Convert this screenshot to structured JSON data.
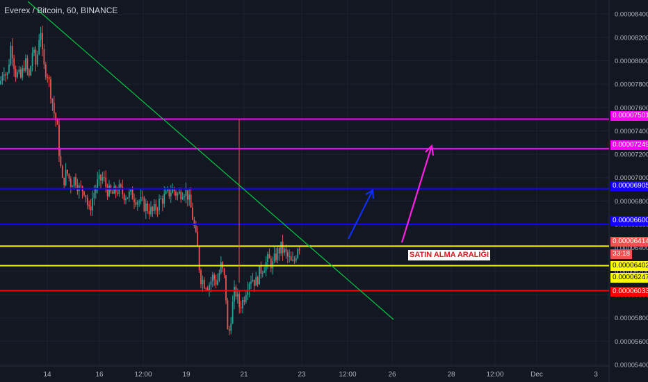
{
  "header": {
    "ticker_label": "Everex / Bitcoin, 60, BINANCE"
  },
  "annotation": {
    "text": "SATIN ALMA ARALIĞI"
  },
  "countdown": "33:18",
  "colors": {
    "background": "#131722",
    "grid": "#1e2230",
    "up": "#26a69a",
    "down": "#ef5350",
    "magenta": "#ff00ff",
    "blue": "#1400ff",
    "yellow": "#ffff00",
    "red": "#ff0000",
    "trend": "#00cc44",
    "arrow_blue": "#0f2fff",
    "arrow_magenta": "#ff1ee6"
  },
  "chart_data": {
    "type": "candlestick",
    "title": "Everex / Bitcoin, 60, BINANCE",
    "ylim": [
      5.37e-05,
      8.52e-05
    ],
    "y_ticks": [
      "0.00008400",
      "0.00008200",
      "0.00008000",
      "0.00007800",
      "0.00007600",
      "0.00007400",
      "0.00007200",
      "0.00007000",
      "0.00006800",
      "0.00006600",
      "0.00006400",
      "0.00006200",
      "0.00006000",
      "0.00005800",
      "0.00005600",
      "0.00005400"
    ],
    "x_ticks": [
      "14",
      "16",
      "12:00",
      "19",
      "21",
      "23",
      "12:00",
      "26",
      "28",
      "12:00",
      "Dec",
      "3"
    ],
    "grid": true,
    "horizontal_levels": [
      {
        "value": 7.501e-05,
        "label": "0.00007501",
        "color": "magenta"
      },
      {
        "value": 7.249e-05,
        "label": "0.00007249",
        "color": "magenta"
      },
      {
        "value": 6.905e-05,
        "label": "0.00006905",
        "color": "blue"
      },
      {
        "value": 6.6e-05,
        "label": "0.00006600",
        "color": "blue"
      },
      {
        "value": 6.414e-05,
        "label": "0.00006414",
        "color": "yellow"
      },
      {
        "value": 6.247e-05,
        "label": "0.00006247",
        "color": "yellow"
      },
      {
        "value": 6.033e-05,
        "label": "0.00006033",
        "color": "red"
      }
    ],
    "last_price": {
      "value": 6.414e-05,
      "label": "0.00006414"
    },
    "extra_price_label": "0.00006402",
    "price_path": [
      {
        "t": 0,
        "p": 7.8e-05
      },
      {
        "t": 5,
        "p": 7.95e-05
      },
      {
        "t": 10,
        "p": 7.85e-05
      },
      {
        "t": 16,
        "p": 8.15e-05
      },
      {
        "t": 22,
        "p": 7.9e-05
      },
      {
        "t": 30,
        "p": 7.85e-05
      },
      {
        "t": 36,
        "p": 8e-05
      },
      {
        "t": 42,
        "p": 7.85e-05
      },
      {
        "t": 47,
        "p": 8.1e-05
      },
      {
        "t": 52,
        "p": 7.95e-05
      },
      {
        "t": 58,
        "p": 8.32e-05
      },
      {
        "t": 62,
        "p": 7.95e-05
      },
      {
        "t": 68,
        "p": 7.9e-05
      },
      {
        "t": 74,
        "p": 7.7e-05
      },
      {
        "t": 78,
        "p": 7.55e-05
      },
      {
        "t": 82,
        "p": 7.45e-05
      },
      {
        "t": 86,
        "p": 7.15e-05
      },
      {
        "t": 90,
        "p": 6.95e-05
      },
      {
        "t": 96,
        "p": 7.05e-05
      },
      {
        "t": 102,
        "p": 6.95e-05
      },
      {
        "t": 108,
        "p": 7e-05
      },
      {
        "t": 114,
        "p": 6.9e-05
      },
      {
        "t": 122,
        "p": 6.9e-05
      },
      {
        "t": 128,
        "p": 6.7e-05
      },
      {
        "t": 134,
        "p": 6.85e-05
      },
      {
        "t": 140,
        "p": 6.95e-05
      },
      {
        "t": 148,
        "p": 7e-05
      },
      {
        "t": 154,
        "p": 6.9e-05
      },
      {
        "t": 160,
        "p": 6.85e-05
      },
      {
        "t": 170,
        "p": 6.9e-05
      },
      {
        "t": 180,
        "p": 6.85e-05
      },
      {
        "t": 190,
        "p": 6.85e-05
      },
      {
        "t": 200,
        "p": 6.8e-05
      },
      {
        "t": 210,
        "p": 6.75e-05
      },
      {
        "t": 220,
        "p": 6.7e-05
      },
      {
        "t": 230,
        "p": 6.8e-05
      },
      {
        "t": 240,
        "p": 6.85e-05
      },
      {
        "t": 248,
        "p": 6.9e-05
      },
      {
        "t": 256,
        "p": 6.85e-05
      },
      {
        "t": 264,
        "p": 6.9e-05
      },
      {
        "t": 270,
        "p": 6.85e-05
      },
      {
        "t": 276,
        "p": 6.7e-05
      },
      {
        "t": 280,
        "p": 6.55e-05
      },
      {
        "t": 284,
        "p": 6.4e-05
      },
      {
        "t": 288,
        "p": 6.15e-05
      },
      {
        "t": 294,
        "p": 6.1e-05
      },
      {
        "t": 300,
        "p": 6.08e-05
      },
      {
        "t": 306,
        "p": 6.15e-05
      },
      {
        "t": 312,
        "p": 6.1e-05
      },
      {
        "t": 318,
        "p": 6.25e-05
      },
      {
        "t": 324,
        "p": 6.1e-05
      },
      {
        "t": 328,
        "p": 5.6e-05
      },
      {
        "t": 333,
        "p": 5.85e-05
      },
      {
        "t": 338,
        "p": 6.05e-05
      },
      {
        "t": 344,
        "p": 5.9e-05
      },
      {
        "t": 350,
        "p": 5.95e-05
      },
      {
        "t": 356,
        "p": 6.1e-05
      },
      {
        "t": 362,
        "p": 6.15e-05
      },
      {
        "t": 368,
        "p": 6.1e-05
      },
      {
        "t": 374,
        "p": 6.2e-05
      },
      {
        "t": 380,
        "p": 6.25e-05
      },
      {
        "t": 386,
        "p": 6.3e-05
      },
      {
        "t": 392,
        "p": 6.25e-05
      },
      {
        "t": 398,
        "p": 6.35e-05
      },
      {
        "t": 404,
        "p": 6.4e-05
      },
      {
        "t": 410,
        "p": 6.35e-05
      },
      {
        "t": 416,
        "p": 6.3e-05
      },
      {
        "t": 420,
        "p": 6.25e-05
      },
      {
        "t": 424,
        "p": 6.3e-05
      },
      {
        "t": 428,
        "p": 6.42e-05
      },
      {
        "t": 432,
        "p": 6.414e-05
      }
    ]
  }
}
